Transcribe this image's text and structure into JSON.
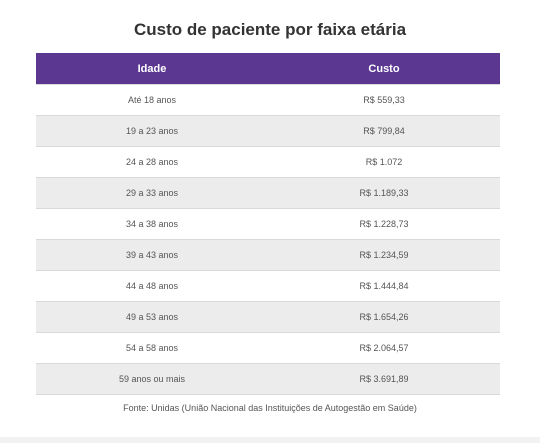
{
  "title": "Custo de paciente por faixa etária",
  "table": {
    "headers": [
      "Idade",
      "Custo"
    ],
    "rows": [
      [
        "Até 18 anos",
        "R$ 559,33"
      ],
      [
        "19 a 23 anos",
        "R$ 799,84"
      ],
      [
        "24 a 28 anos",
        "R$ 1.072"
      ],
      [
        "29 a 33 anos",
        "R$ 1.189,33"
      ],
      [
        "34 a 38 anos",
        "R$ 1.228,73"
      ],
      [
        "39 a 43 anos",
        "R$ 1.234,59"
      ],
      [
        "44 a 48 anos",
        "R$ 1.444,84"
      ],
      [
        "49 a 53 anos",
        "R$ 1.654,26"
      ],
      [
        "54 a 58 anos",
        "R$ 2.064,57"
      ],
      [
        "59 anos ou mais",
        "R$ 3.691,89"
      ]
    ]
  },
  "source": "Fonte: Unidas (União Nacional das Instituições de Autogestão em Saúde)",
  "colors": {
    "header_bg": "#5b3792",
    "stripe_bg": "#ececec"
  }
}
